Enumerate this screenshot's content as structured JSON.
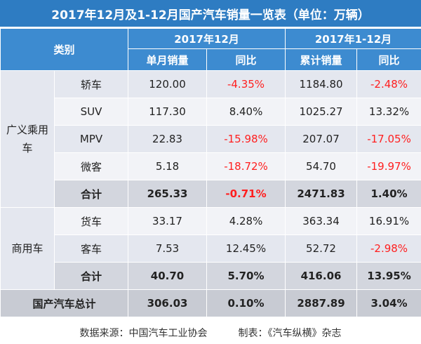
{
  "title": "2017年12月及1-12月国产汽车销量一览表（单位：万辆）",
  "header": {
    "category": "类别",
    "period_month": "2017年12月",
    "period_ytd": "2017年1-12月",
    "monthly_sales": "单月销量",
    "yoy_month": "同比",
    "cumulative_sales": "累计销量",
    "yoy_ytd": "同比"
  },
  "groups": [
    {
      "name": "广义乘用车",
      "rows": [
        {
          "type": "轿车",
          "monthly": "120.00",
          "monthly_yoy": "-4.35%",
          "cumulative": "1184.80",
          "cumulative_yoy": "-2.48%"
        },
        {
          "type": "SUV",
          "monthly": "117.30",
          "monthly_yoy": "8.40%",
          "cumulative": "1025.27",
          "cumulative_yoy": "13.32%"
        },
        {
          "type": "MPV",
          "monthly": "22.83",
          "monthly_yoy": "-15.98%",
          "cumulative": "207.07",
          "cumulative_yoy": "-17.05%"
        },
        {
          "type": "微客",
          "monthly": "5.18",
          "monthly_yoy": "-18.72%",
          "cumulative": "54.70",
          "cumulative_yoy": "-19.97%"
        }
      ],
      "subtotal": {
        "label": "合计",
        "monthly": "265.33",
        "monthly_yoy": "-0.71%",
        "cumulative": "2471.83",
        "cumulative_yoy": "1.40%"
      }
    },
    {
      "name": "商用车",
      "rows": [
        {
          "type": "货车",
          "monthly": "33.17",
          "monthly_yoy": "4.28%",
          "cumulative": "363.34",
          "cumulative_yoy": "16.91%"
        },
        {
          "type": "客车",
          "monthly": "7.53",
          "monthly_yoy": "12.45%",
          "cumulative": "52.72",
          "cumulative_yoy": "-2.98%"
        }
      ],
      "subtotal": {
        "label": "合计",
        "monthly": "40.70",
        "monthly_yoy": "5.70%",
        "cumulative": "416.06",
        "cumulative_yoy": "13.95%"
      }
    }
  ],
  "total": {
    "label": "国产汽车总计",
    "monthly": "306.03",
    "monthly_yoy": "0.10%",
    "cumulative": "2887.89",
    "cumulative_yoy": "3.04%"
  },
  "footer": {
    "source": "数据来源：中国汽车工业协会",
    "made_by": "制表：《汽车纵横》杂志"
  },
  "colors": {
    "header_blue": "#3d8bd0",
    "title_blue": "#2e7cc2",
    "negative": "#ff1f1f"
  }
}
